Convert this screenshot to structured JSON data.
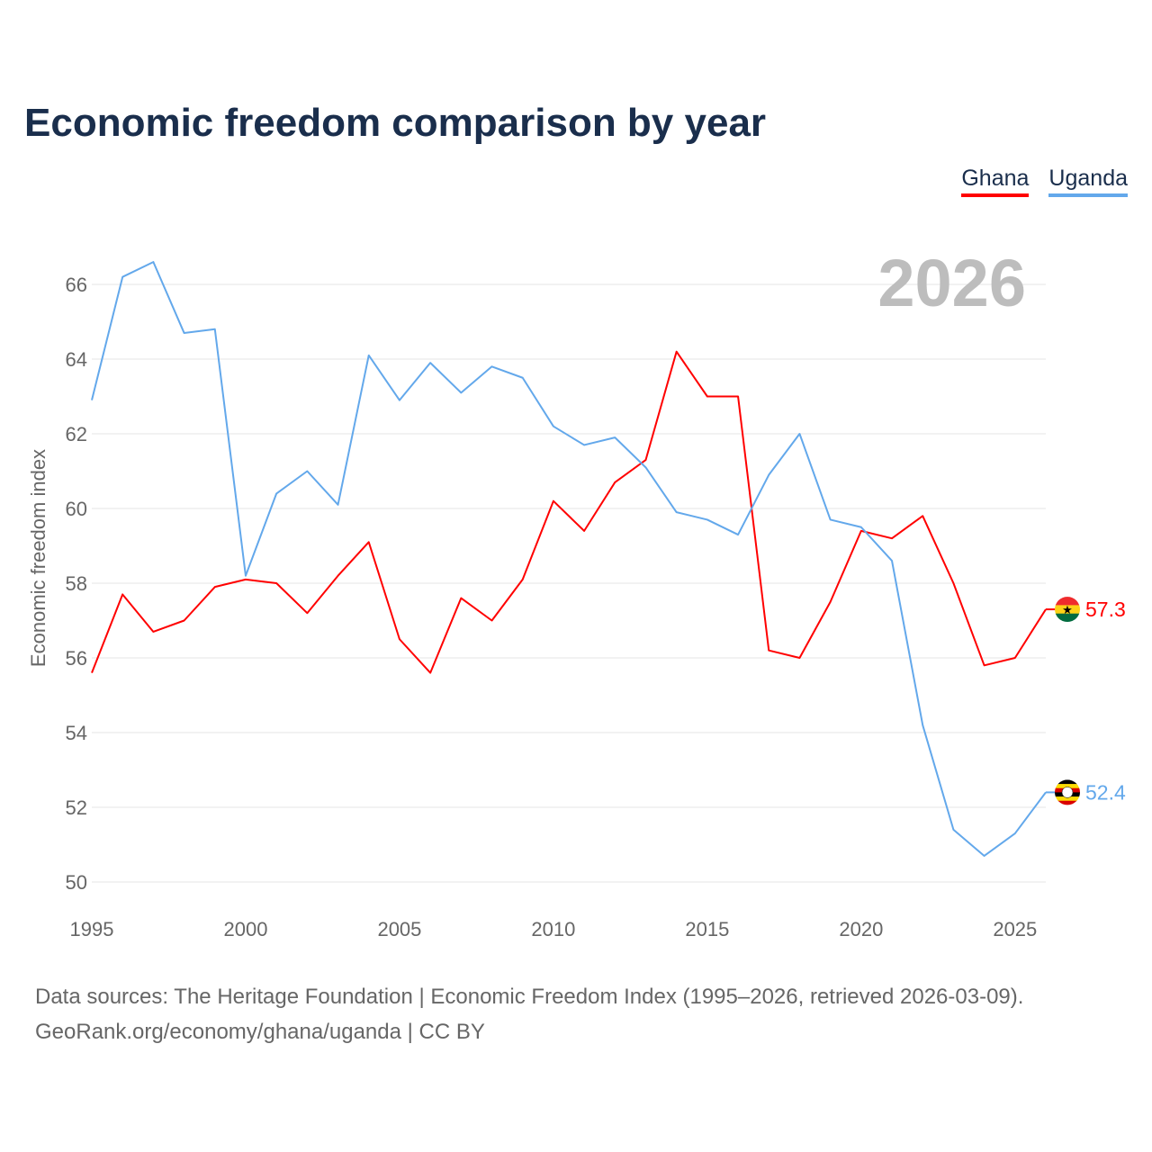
{
  "chart_data": {
    "type": "line",
    "title": "Economic freedom comparison by year",
    "xlabel": "",
    "ylabel": "Economic freedom index",
    "xlim": [
      1995,
      2026
    ],
    "ylim": [
      50,
      67
    ],
    "x_ticks": [
      1995,
      2000,
      2005,
      2010,
      2015,
      2020,
      2025
    ],
    "y_ticks": [
      50,
      52,
      54,
      56,
      58,
      60,
      62,
      64,
      66
    ],
    "grid": true,
    "legend_position": "top-right",
    "year_label": "2026",
    "x": [
      1995,
      1996,
      1997,
      1998,
      1999,
      2000,
      2001,
      2002,
      2003,
      2004,
      2005,
      2006,
      2007,
      2008,
      2009,
      2010,
      2011,
      2012,
      2013,
      2014,
      2015,
      2016,
      2017,
      2018,
      2019,
      2020,
      2021,
      2022,
      2023,
      2024,
      2025,
      2026
    ],
    "series": [
      {
        "name": "Ghana",
        "color": "#ff0000",
        "end_label": "57.3",
        "values": [
          55.6,
          57.7,
          56.7,
          57.0,
          57.9,
          58.1,
          58.0,
          57.2,
          58.2,
          59.1,
          56.5,
          55.6,
          57.6,
          57.0,
          58.1,
          60.2,
          59.4,
          60.7,
          61.3,
          64.2,
          63.0,
          63.0,
          56.2,
          56.0,
          57.5,
          59.4,
          59.2,
          59.8,
          58.0,
          55.8,
          56.0,
          57.3
        ]
      },
      {
        "name": "Uganda",
        "color": "#63a8eb",
        "end_label": "52.4",
        "values": [
          62.9,
          66.2,
          66.6,
          64.7,
          64.8,
          58.2,
          60.4,
          61.0,
          60.1,
          64.1,
          62.9,
          63.9,
          63.1,
          63.8,
          63.5,
          62.2,
          61.7,
          61.9,
          61.1,
          59.9,
          59.7,
          59.3,
          60.9,
          62.0,
          59.7,
          59.5,
          58.6,
          54.2,
          51.4,
          50.7,
          51.3,
          52.4
        ]
      }
    ]
  },
  "source": {
    "line1": "Data sources: The Heritage Foundation | Economic Freedom Index (1995–2026, retrieved 2026-03-09).",
    "line2": "GeoRank.org/economy/ghana/uganda | CC BY"
  }
}
